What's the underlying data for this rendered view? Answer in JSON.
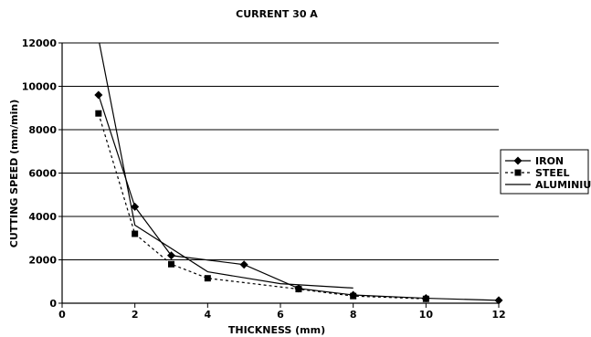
{
  "chart_data": {
    "type": "line",
    "title": "CURRENT 30 A",
    "xlabel": "THICKNESS (mm)",
    "ylabel": "CUTTING SPEED (mm/min)",
    "xlim": [
      0,
      12
    ],
    "ylim": [
      0,
      12000
    ],
    "xticks": [
      0,
      2,
      4,
      6,
      8,
      10,
      12
    ],
    "yticks": [
      0,
      2000,
      4000,
      6000,
      8000,
      10000,
      12000
    ],
    "grid": "horizontal",
    "legend_position": "right",
    "series": [
      {
        "name": "IRON",
        "marker": "diamond",
        "line": "solid",
        "x": [
          1,
          2,
          3,
          5,
          6.5,
          8,
          10,
          12
        ],
        "y": [
          9600,
          4450,
          2200,
          1780,
          680,
          380,
          230,
          130
        ]
      },
      {
        "name": "STEEL",
        "marker": "square",
        "line": "dotted",
        "x": [
          1,
          2,
          3,
          4,
          6.5,
          8,
          10
        ],
        "y": [
          8750,
          3200,
          1800,
          1150,
          650,
          330,
          200
        ]
      },
      {
        "name": "ALUMINIUM",
        "marker": "none",
        "line": "solid",
        "x": [
          1,
          2,
          4,
          6,
          8
        ],
        "y": [
          12200,
          3600,
          1450,
          900,
          700
        ]
      }
    ]
  }
}
